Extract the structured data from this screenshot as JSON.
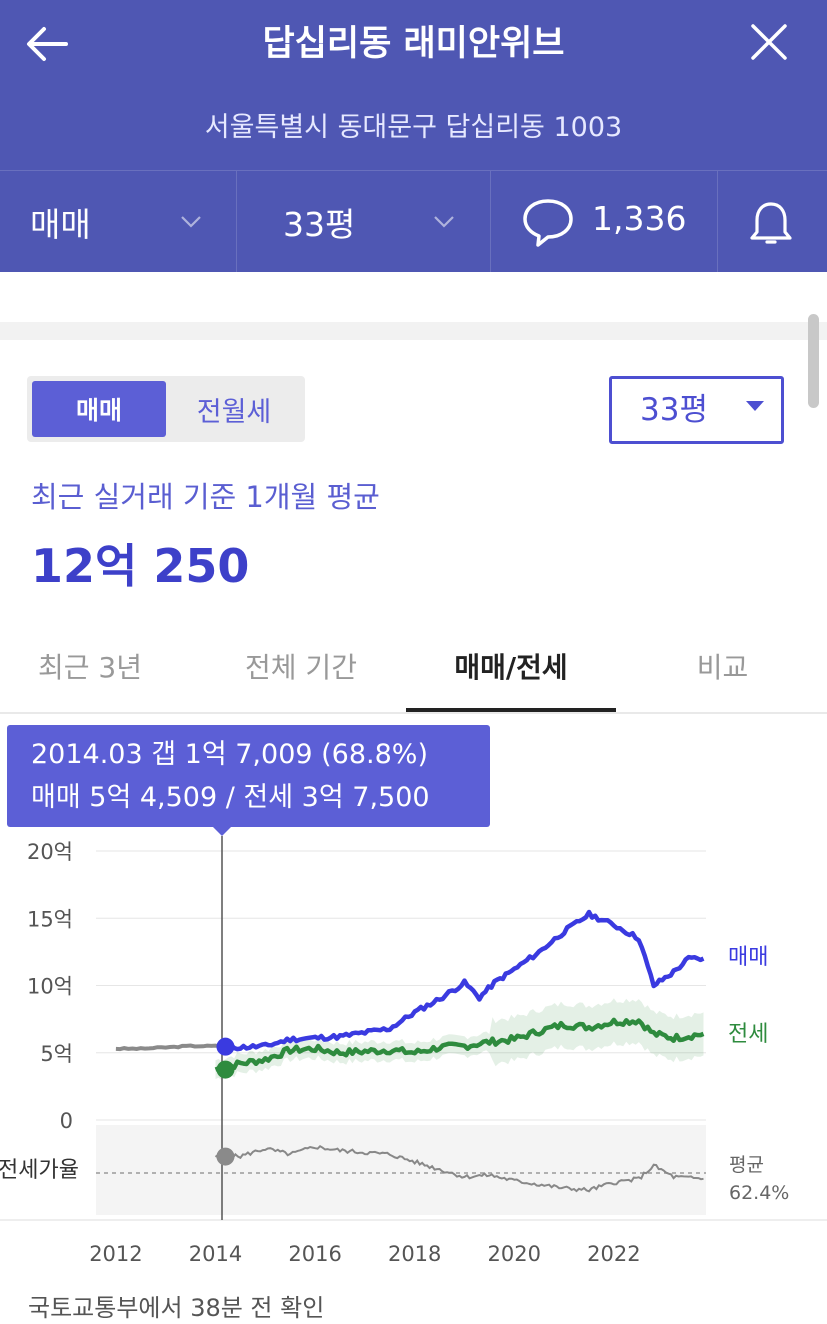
{
  "header": {
    "title": "답십리동 래미안위브",
    "address": "서울특별시 동대문구 답십리동 1003",
    "back_icon": "back-arrow-icon",
    "close_icon": "close-icon"
  },
  "filter_bar": {
    "trade_type": "매매",
    "size": "33평",
    "comment_count": "1,336",
    "comment_icon": "speech-bubble-icon",
    "alarm_icon": "bell-icon"
  },
  "price_panel": {
    "toggle_sale": "매매",
    "toggle_rent": "전월세",
    "size_select": "33평",
    "recent_label": "최근 실거래 기준 1개월 평균",
    "price": "12억 250"
  },
  "tabs": [
    {
      "label": "최근 3년"
    },
    {
      "label": "전체 기간"
    },
    {
      "label": "매매/전세"
    },
    {
      "label": "비교"
    }
  ],
  "tooltip": {
    "line1": "2014.03  갭 1억 7,009 (68.8%)",
    "line2": "매매 5억 4,509 / 전세 3억 7,500"
  },
  "chart_labels": {
    "sale": "매매",
    "jeonse": "전세",
    "ratio": "전세가율",
    "avg": "평균",
    "avg_value": "62.4%"
  },
  "chart_data": {
    "type": "line",
    "x_ticks": [
      "2012",
      "2014",
      "2016",
      "2018",
      "2020",
      "2022"
    ],
    "y_ticks": [
      "0",
      "5억",
      "10억",
      "15억",
      "20억"
    ],
    "ylim": [
      0,
      20
    ],
    "colors": {
      "sale": "#3a3ae0",
      "jeonse": "#2e8b3e",
      "past": "#8a8a8a",
      "ratio": "#888888"
    },
    "series": [
      {
        "name": "매매",
        "points": [
          [
            2012.0,
            5.3
          ],
          [
            2012.5,
            5.3
          ],
          [
            2013.0,
            5.4
          ],
          [
            2013.5,
            5.5
          ],
          [
            2014.0,
            5.5
          ],
          [
            2014.25,
            5.45
          ],
          [
            2014.5,
            5.4
          ],
          [
            2015.0,
            5.5
          ],
          [
            2015.5,
            6.0
          ],
          [
            2016.0,
            6.1
          ],
          [
            2016.5,
            6.2
          ],
          [
            2017.0,
            6.5
          ],
          [
            2017.5,
            6.8
          ],
          [
            2018.0,
            8.0
          ],
          [
            2018.5,
            9.0
          ],
          [
            2019.0,
            10.2
          ],
          [
            2019.3,
            9.1
          ],
          [
            2019.6,
            10.2
          ],
          [
            2020.0,
            11.2
          ],
          [
            2020.5,
            12.5
          ],
          [
            2021.0,
            14.0
          ],
          [
            2021.5,
            15.3
          ],
          [
            2022.0,
            14.5
          ],
          [
            2022.5,
            13.5
          ],
          [
            2022.8,
            10.0
          ],
          [
            2023.2,
            11.0
          ],
          [
            2023.5,
            12.0
          ],
          [
            2023.8,
            12.0
          ]
        ]
      },
      {
        "name": "전세",
        "points": [
          [
            2014.0,
            3.75
          ],
          [
            2014.5,
            4.2
          ],
          [
            2015.0,
            4.5
          ],
          [
            2015.5,
            5.2
          ],
          [
            2016.0,
            5.3
          ],
          [
            2016.5,
            5.0
          ],
          [
            2017.0,
            5.1
          ],
          [
            2017.5,
            5.2
          ],
          [
            2018.0,
            5.0
          ],
          [
            2018.5,
            5.4
          ],
          [
            2019.0,
            5.5
          ],
          [
            2019.5,
            5.8
          ],
          [
            2020.0,
            6.0
          ],
          [
            2020.5,
            6.6
          ],
          [
            2021.0,
            7.1
          ],
          [
            2021.5,
            6.9
          ],
          [
            2022.0,
            7.3
          ],
          [
            2022.5,
            7.4
          ],
          [
            2022.8,
            6.4
          ],
          [
            2023.2,
            6.1
          ],
          [
            2023.8,
            6.4
          ]
        ]
      },
      {
        "name": "전세가율",
        "points": [
          [
            2014.0,
            68.8
          ],
          [
            2014.5,
            69
          ],
          [
            2015.0,
            73
          ],
          [
            2015.5,
            70
          ],
          [
            2016.0,
            74
          ],
          [
            2016.5,
            72
          ],
          [
            2017.0,
            71
          ],
          [
            2017.5,
            70
          ],
          [
            2018.0,
            66
          ],
          [
            2018.5,
            62
          ],
          [
            2019.0,
            58
          ],
          [
            2019.5,
            59
          ],
          [
            2020.0,
            56
          ],
          [
            2020.5,
            54
          ],
          [
            2021.0,
            52
          ],
          [
            2021.5,
            51
          ],
          [
            2022.0,
            55
          ],
          [
            2022.5,
            57
          ],
          [
            2022.8,
            64
          ],
          [
            2023.2,
            58
          ],
          [
            2023.8,
            57
          ]
        ]
      }
    ],
    "ratio_average": 62.4,
    "highlight": {
      "x": "2014.03",
      "sale": 5.4509,
      "jeonse": 3.75
    }
  },
  "source": {
    "text": "국토교통부에서 38분 전 확인"
  }
}
